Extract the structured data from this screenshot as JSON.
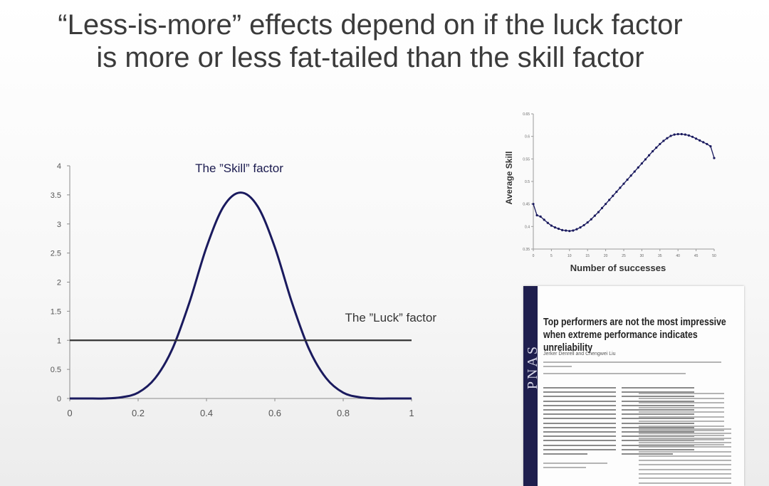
{
  "title": "“Less-is-more” effects depend on if the luck factor is more or less fat-tailed than the skill factor",
  "chart_data": [
    {
      "type": "line",
      "annotations": [
        "The ”Skill” factor",
        "The ”Luck” factor"
      ],
      "xlim": [
        0,
        1
      ],
      "ylim": [
        0,
        4
      ],
      "x_ticks": [
        "0",
        "0.2",
        "0.4",
        "0.6",
        "0.8",
        "1"
      ],
      "y_ticks": [
        "0",
        "0.5",
        "1",
        "1.5",
        "2",
        "2.5",
        "3",
        "3.5",
        "4"
      ],
      "grid": false,
      "series": [
        {
          "color": "#1a1a5e",
          "x": [
            0,
            0.05,
            0.1,
            0.15,
            0.2,
            0.25,
            0.3,
            0.35,
            0.4,
            0.45,
            0.5,
            0.55,
            0.6,
            0.65,
            0.7,
            0.75,
            0.8,
            0.85,
            0.9,
            0.95,
            1
          ],
          "y": [
            0,
            0,
            0,
            0.02,
            0.1,
            0.35,
            0.85,
            1.65,
            2.6,
            3.3,
            3.54,
            3.3,
            2.6,
            1.65,
            0.85,
            0.35,
            0.1,
            0.02,
            0,
            0,
            0
          ]
        },
        {
          "color": "#333333",
          "x": [
            0,
            1
          ],
          "y": [
            1,
            1
          ]
        }
      ]
    },
    {
      "type": "line",
      "xlabel": "Number of successes",
      "ylabel": "Average Skill",
      "xlim": [
        0,
        50
      ],
      "ylim": [
        0.35,
        0.65
      ],
      "x_ticks": [
        "0",
        "5",
        "10",
        "15",
        "20",
        "25",
        "30",
        "35",
        "40",
        "45",
        "50"
      ],
      "y_ticks": [
        "0.35",
        "0.4",
        "0.45",
        "0.5",
        "0.55",
        "0.6",
        "0.65"
      ],
      "grid": false,
      "series": [
        {
          "color": "#1a1a5e",
          "x": [
            0,
            1,
            2,
            3,
            4,
            5,
            6,
            7,
            8,
            9,
            10,
            11,
            12,
            13,
            14,
            15,
            16,
            17,
            18,
            19,
            20,
            21,
            22,
            23,
            24,
            25,
            26,
            27,
            28,
            29,
            30,
            31,
            32,
            33,
            34,
            35,
            36,
            37,
            38,
            39,
            40,
            41,
            42,
            43,
            44,
            45,
            46,
            47,
            48,
            49,
            50
          ],
          "y": [
            0.45,
            0.425,
            0.422,
            0.415,
            0.408,
            0.402,
            0.398,
            0.395,
            0.392,
            0.391,
            0.39,
            0.391,
            0.394,
            0.398,
            0.403,
            0.409,
            0.416,
            0.424,
            0.432,
            0.441,
            0.45,
            0.459,
            0.468,
            0.477,
            0.486,
            0.495,
            0.504,
            0.513,
            0.522,
            0.531,
            0.54,
            0.549,
            0.558,
            0.567,
            0.575,
            0.583,
            0.59,
            0.596,
            0.601,
            0.604,
            0.605,
            0.605,
            0.604,
            0.602,
            0.599,
            0.595,
            0.591,
            0.587,
            0.583,
            0.578,
            0.552
          ]
        }
      ]
    }
  ],
  "paper": {
    "logo": "PNAS",
    "title": "Top performers are not the most impressive when extreme performance indicates unreliability",
    "authors": "Jerker Denrell and Chengwei Liu"
  }
}
